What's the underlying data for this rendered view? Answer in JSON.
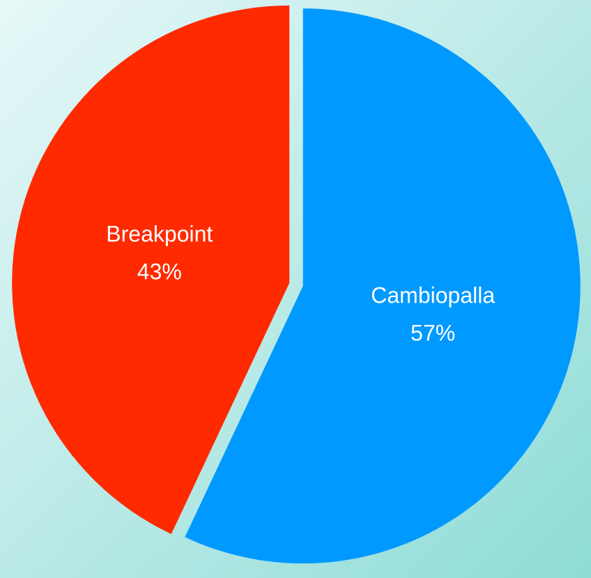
{
  "chart_data": {
    "type": "pie",
    "categories": [
      "Cambiopalla",
      "Breakpoint"
    ],
    "values": [
      57,
      43
    ],
    "value_labels": [
      "57%",
      "43%"
    ],
    "colors": [
      "#0099ff",
      "#ff2a00"
    ]
  }
}
